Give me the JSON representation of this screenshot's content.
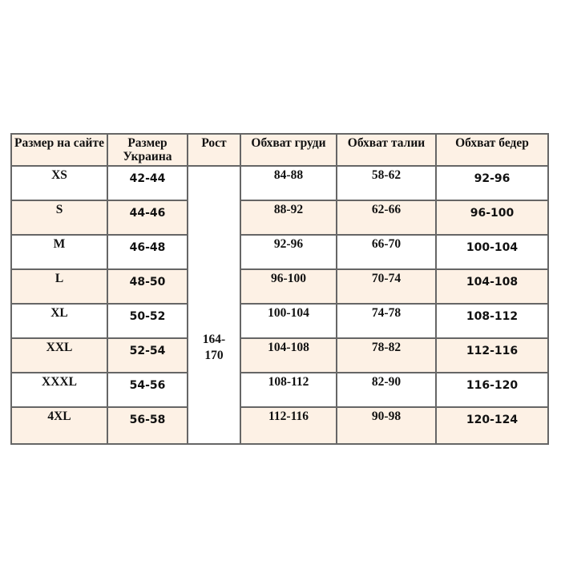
{
  "headers": [
    "Размер на сайте",
    "Размер Украина",
    "Рост",
    "Обхват груди",
    "Обхват талии",
    "Обхват бедер"
  ],
  "height_range": "164-170",
  "row_shade_color": "#fdf1e5",
  "rows": [
    {
      "site": "XS",
      "ua": "42-44",
      "chest": "84-88",
      "waist": "58-62",
      "hips": "92-96"
    },
    {
      "site": "S",
      "ua": "44-46",
      "chest": "88-92",
      "waist": "62-66",
      "hips": "96-100"
    },
    {
      "site": "M",
      "ua": "46-48",
      "chest": "92-96",
      "waist": "66-70",
      "hips": "100-104"
    },
    {
      "site": "L",
      "ua": "48-50",
      "chest": "96-100",
      "waist": "70-74",
      "hips": "104-108"
    },
    {
      "site": "XL",
      "ua": "50-52",
      "chest": "100-104",
      "waist": "74-78",
      "hips": "108-112"
    },
    {
      "site": "XXL",
      "ua": "52-54",
      "chest": "104-108",
      "waist": "78-82",
      "hips": "112-116"
    },
    {
      "site": "XXXL",
      "ua": "54-56",
      "chest": "108-112",
      "waist": "82-90",
      "hips": "116-120"
    },
    {
      "site": "4XL",
      "ua": "56-58",
      "chest": "112-116",
      "waist": "90-98",
      "hips": "120-124"
    }
  ]
}
